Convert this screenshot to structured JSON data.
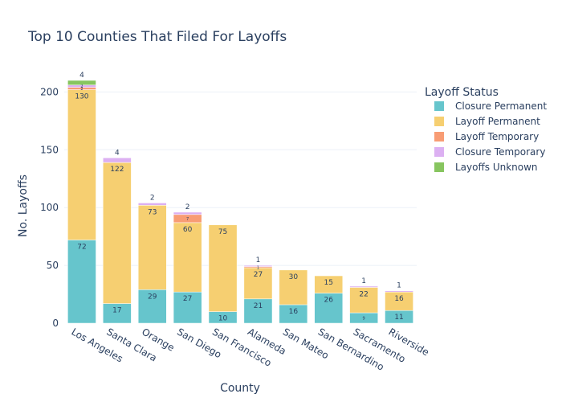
{
  "chart_data": {
    "type": "bar",
    "stacked": true,
    "title": "Top 10 Counties That Filed For Layoffs",
    "xlabel": "County",
    "ylabel": "No. Layoffs",
    "ylim": [
      0,
      210
    ],
    "yticks": [
      0,
      50,
      100,
      150,
      200
    ],
    "grid": true,
    "legend_title": "Layoff Status",
    "legend_position": "top-right",
    "categories": [
      "Los Angeles",
      "Santa Clara",
      "Orange",
      "San Diego",
      "San Francisco",
      "Alameda",
      "San Mateo",
      "San Bernardino",
      "Sacramento",
      "Riverside"
    ],
    "series": [
      {
        "name": "Closure Permanent",
        "color": "#66c5cc",
        "values": [
          72,
          17,
          29,
          27,
          10,
          21,
          16,
          26,
          9,
          11
        ],
        "labels": [
          "72",
          "17",
          "29",
          "27",
          "10",
          "21",
          "16",
          "26",
          "9",
          "11"
        ]
      },
      {
        "name": "Layoff Permanent",
        "color": "#f6cf71",
        "values": [
          130,
          122,
          73,
          60,
          75,
          27,
          30,
          15,
          22,
          16
        ],
        "labels": [
          "130",
          "122",
          "73",
          "60",
          "75",
          "27",
          "30",
          "15",
          "22",
          "16"
        ]
      },
      {
        "name": "Layoff Temporary",
        "color": "#f89c74",
        "values": [
          2,
          0,
          0,
          7,
          0,
          1,
          0,
          0,
          0,
          0
        ],
        "labels": [
          "2",
          "",
          "",
          "7",
          "",
          "1",
          "",
          "",
          "",
          ""
        ]
      },
      {
        "name": "Closure Temporary",
        "color": "#dcb0f2",
        "values": [
          2,
          4,
          2,
          2,
          0,
          1,
          0,
          0,
          1,
          1
        ],
        "labels": [
          "2",
          "4",
          "2",
          "2",
          "",
          "1",
          "",
          "",
          "1",
          "1"
        ]
      },
      {
        "name": "Layoffs Unknown",
        "color": "#87c55f",
        "values": [
          4,
          0,
          0,
          0,
          0,
          0,
          0,
          0,
          0,
          0
        ],
        "labels": [
          "4",
          "",
          "",
          "",
          "",
          "",
          "",
          "",
          "",
          ""
        ]
      }
    ]
  }
}
